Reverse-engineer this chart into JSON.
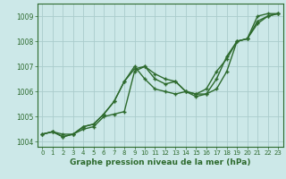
{
  "x": [
    0,
    1,
    2,
    3,
    4,
    5,
    6,
    7,
    8,
    9,
    10,
    11,
    12,
    13,
    14,
    15,
    16,
    17,
    18,
    19,
    20,
    21,
    22,
    23
  ],
  "line1": [
    1004.3,
    1004.4,
    1004.2,
    1004.3,
    1004.6,
    1004.7,
    1005.1,
    1005.6,
    1006.4,
    1006.9,
    1007.0,
    1006.5,
    1006.3,
    1006.4,
    1006.0,
    1005.9,
    1005.9,
    1006.1,
    1006.8,
    1008.0,
    1008.1,
    1008.8,
    1009.0,
    1009.1
  ],
  "line2": [
    1004.3,
    1004.4,
    1004.2,
    1004.3,
    1004.6,
    1004.7,
    1005.1,
    1005.6,
    1006.4,
    1007.0,
    1006.5,
    1006.1,
    1006.0,
    1005.9,
    1006.0,
    1005.9,
    1006.1,
    1006.8,
    1007.3,
    1008.0,
    1008.1,
    1009.0,
    1009.1,
    1009.1
  ],
  "line3": [
    1004.3,
    1004.4,
    1004.3,
    1004.3,
    1004.5,
    1004.6,
    1005.0,
    1005.1,
    1005.2,
    1006.8,
    1007.0,
    1006.7,
    1006.5,
    1006.4,
    1006.0,
    1005.8,
    1005.9,
    1006.5,
    1007.4,
    1008.0,
    1008.1,
    1008.7,
    1009.0,
    1009.1
  ],
  "line_color": "#2d6a2d",
  "bg_color": "#cce8e8",
  "grid_color": "#aacccc",
  "xlabel": "Graphe pression niveau de la mer (hPa)",
  "ylim": [
    1003.8,
    1009.5
  ],
  "xlim": [
    -0.5,
    23.5
  ],
  "yticks": [
    1004,
    1005,
    1006,
    1007,
    1008,
    1009
  ],
  "xticks": [
    0,
    1,
    2,
    3,
    4,
    5,
    6,
    7,
    8,
    9,
    10,
    11,
    12,
    13,
    14,
    15,
    16,
    17,
    18,
    19,
    20,
    21,
    22,
    23
  ],
  "marker": "+",
  "markersize": 3,
  "linewidth": 1.0
}
